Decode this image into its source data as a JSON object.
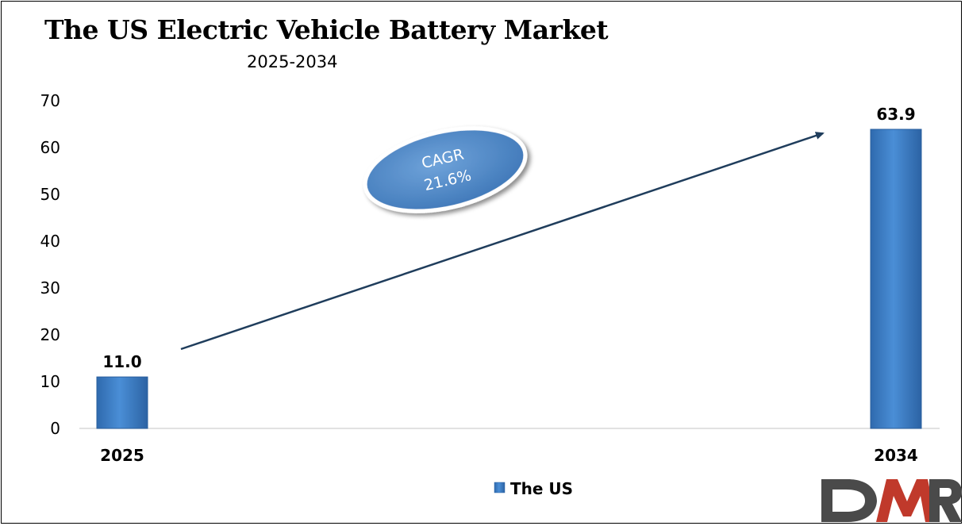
{
  "chart_data": {
    "type": "bar",
    "title": "The US Electric Vehicle Battery Market",
    "subtitle": "2025-2034",
    "categories": [
      "2025",
      "2034"
    ],
    "series": [
      {
        "name": "The US",
        "values": [
          11.0,
          63.9
        ],
        "data_labels": [
          "11.0",
          "63.9"
        ],
        "color": "#3A7CC4"
      }
    ],
    "ylim": [
      0,
      70
    ],
    "yticks": [
      0,
      10,
      20,
      30,
      40,
      50,
      60,
      70
    ],
    "ytick_labels": [
      "0",
      "10",
      "20",
      "30",
      "40",
      "50",
      "60",
      "70"
    ],
    "grid": false,
    "legend_position": "bottom-center",
    "annotation": {
      "label": "CAGR",
      "value": "21.6%",
      "color": "#4A84C4"
    },
    "arrow_color": "#1F3D5C"
  },
  "logo": {
    "text": "DMR",
    "colors": [
      "#4A4A4A",
      "#C0392B"
    ]
  }
}
